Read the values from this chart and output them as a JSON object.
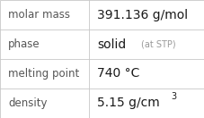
{
  "rows": [
    {
      "label": "molar mass",
      "value": "391.136 g/mol",
      "type": "plain"
    },
    {
      "label": "phase",
      "value": "solid",
      "suffix": " (at STP)",
      "type": "suffix"
    },
    {
      "label": "melting point",
      "value": "740 °C",
      "type": "plain"
    },
    {
      "label": "density",
      "value": "5.15 g/cm",
      "superscript": "3",
      "type": "super"
    }
  ],
  "bg_color": "#ffffff",
  "border_color": "#c8c8c8",
  "label_color": "#555555",
  "value_color": "#1a1a1a",
  "suffix_color": "#999999",
  "label_fontsize": 8.5,
  "value_fontsize": 10,
  "suffix_fontsize": 7,
  "super_fontsize": 7,
  "col_split": 0.435,
  "fig_width": 2.28,
  "fig_height": 1.32,
  "dpi": 100
}
